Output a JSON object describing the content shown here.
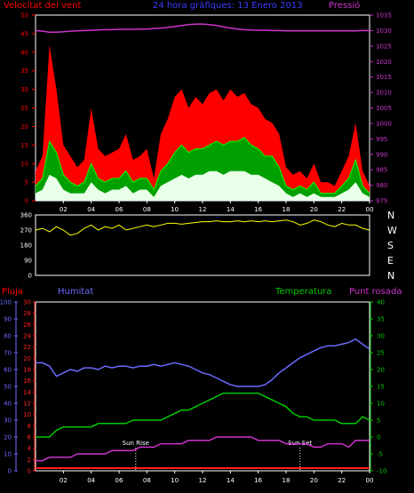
{
  "colors": {
    "background": "#000000",
    "wind_gust": "#ff0000",
    "wind_avg": "#00c800",
    "wind_min": "#e8ffe8",
    "pressure": "#cc33cc",
    "direction": "#ffff00",
    "humidity": "#6b6bff",
    "temperature": "#00c800",
    "dewpoint": "#cc33cc",
    "rain": "#ff2020",
    "axis_frame": "#ffffff",
    "sun_marker": "#ffffff"
  },
  "header": {
    "wind_label": "Velocitat del vent",
    "title": "24 hora gràfiques: 13 Enero 2013",
    "pressure_label": "Pressió"
  },
  "bottom_header": {
    "rain": "Pluja",
    "humidity": "Humitat",
    "temperature": "Temperatura",
    "dewpoint": "Punt rosada"
  },
  "annotations": {
    "sunrise": "Sun Rise",
    "sunset": "Sun Set"
  },
  "chart_data": [
    {
      "type": "area",
      "title": "24 hora gràfiques: 13 Enero 2013",
      "ylabel": "Velocitat del vent",
      "y2label": "Pressió",
      "ylim": [
        0,
        50
      ],
      "y2lim": [
        975,
        1035
      ],
      "left_ticks": [
        "0",
        "5",
        "10",
        "15",
        "20",
        "25",
        "30",
        "35",
        "40",
        "45",
        "50"
      ],
      "right_ticks": [
        "975",
        "980",
        "985",
        "990",
        "995",
        "1000",
        "1005",
        "1010",
        "1015",
        "1020",
        "1025",
        "1030",
        "1035"
      ],
      "x_ticks": [
        "02",
        "04",
        "06",
        "08",
        "10",
        "12",
        "14",
        "16",
        "18",
        "20",
        "22",
        "00"
      ],
      "x": [
        0,
        0.5,
        1,
        1.5,
        2,
        2.5,
        3,
        3.5,
        4,
        4.5,
        5,
        5.5,
        6,
        6.5,
        7,
        7.5,
        8,
        8.5,
        9,
        9.5,
        10,
        10.5,
        11,
        11.5,
        12,
        12.5,
        13,
        13.5,
        14,
        14.5,
        15,
        15.5,
        16,
        16.5,
        17,
        17.5,
        18,
        18.5,
        19,
        19.5,
        20,
        20.5,
        21,
        21.5,
        22,
        22.5,
        23,
        23.5,
        24
      ],
      "series": [
        {
          "name": "gust",
          "values": [
            8,
            12,
            42,
            30,
            15,
            12,
            9,
            11,
            25,
            14,
            12,
            13,
            14,
            18,
            11,
            12,
            14,
            6,
            18,
            22,
            28,
            30,
            25,
            28,
            26,
            29,
            30,
            27,
            30,
            28,
            29,
            26,
            25,
            22,
            21,
            18,
            9,
            7,
            8,
            6,
            10,
            5,
            5,
            4,
            8,
            12,
            21,
            8,
            4
          ]
        },
        {
          "name": "average",
          "values": [
            4,
            6,
            16,
            13,
            7,
            5,
            4,
            5,
            10,
            6,
            5,
            6,
            6,
            8,
            5,
            6,
            6,
            3,
            8,
            10,
            13,
            15,
            13,
            14,
            14,
            15,
            16,
            15,
            16,
            16,
            17,
            15,
            14,
            12,
            12,
            9,
            4,
            3,
            4,
            3,
            5,
            2,
            2,
            2,
            4,
            6,
            11,
            4,
            2
          ]
        },
        {
          "name": "minimum",
          "values": [
            2,
            3,
            7,
            6,
            3,
            2,
            2,
            2,
            5,
            3,
            2,
            3,
            3,
            4,
            2,
            3,
            3,
            1,
            4,
            5,
            6,
            7,
            6,
            7,
            7,
            8,
            8,
            7,
            8,
            8,
            8,
            7,
            7,
            6,
            5,
            4,
            2,
            1,
            2,
            1,
            2,
            1,
            1,
            1,
            2,
            3,
            5,
            2,
            1
          ]
        },
        {
          "name": "pressure",
          "values": [
            1030,
            1029.8,
            1029.5,
            1029.5,
            1029.6,
            1029.8,
            1029.9,
            1030,
            1030.1,
            1030.2,
            1030.3,
            1030.3,
            1030.4,
            1030.4,
            1030.4,
            1030.5,
            1030.5,
            1030.7,
            1030.8,
            1031,
            1031.3,
            1031.6,
            1031.9,
            1032.1,
            1032.1,
            1031.9,
            1031.6,
            1031.2,
            1030.8,
            1030.5,
            1030.3,
            1030.2,
            1030.1,
            1030.1,
            1030,
            1030,
            1029.9,
            1029.9,
            1029.9,
            1029.9,
            1029.9,
            1029.9,
            1029.9,
            1029.9,
            1029.9,
            1029.9,
            1029.9,
            1030,
            1030
          ]
        }
      ]
    },
    {
      "type": "line",
      "left_ticks": [
        "0",
        "90",
        "180",
        "270",
        "360"
      ],
      "right_labels": [
        "N",
        "W",
        "S",
        "E",
        "N"
      ],
      "ylim": [
        0,
        360
      ],
      "x_ticks": [
        "02",
        "04",
        "06",
        "08",
        "10",
        "12",
        "14",
        "16",
        "18",
        "20",
        "22",
        "00"
      ],
      "x": [
        0,
        0.5,
        1,
        1.5,
        2,
        2.5,
        3,
        3.5,
        4,
        4.5,
        5,
        5.5,
        6,
        6.5,
        7,
        7.5,
        8,
        8.5,
        9,
        9.5,
        10,
        10.5,
        11,
        11.5,
        12,
        12.5,
        13,
        13.5,
        14,
        14.5,
        15,
        15.5,
        16,
        16.5,
        17,
        17.5,
        18,
        18.5,
        19,
        19.5,
        20,
        20.5,
        21,
        21.5,
        22,
        22.5,
        23,
        23.5,
        24
      ],
      "series": [
        {
          "name": "direction",
          "values": [
            270,
            280,
            260,
            290,
            270,
            240,
            250,
            280,
            300,
            270,
            290,
            280,
            300,
            270,
            280,
            290,
            300,
            290,
            300,
            310,
            310,
            305,
            310,
            315,
            320,
            320,
            325,
            320,
            320,
            325,
            320,
            325,
            320,
            325,
            320,
            325,
            330,
            320,
            300,
            310,
            330,
            320,
            300,
            290,
            310,
            300,
            300,
            280,
            270
          ]
        }
      ]
    },
    {
      "type": "line",
      "left_ticks": [
        "0",
        "10",
        "20",
        "30",
        "40",
        "50",
        "60",
        "70",
        "80",
        "90",
        "100"
      ],
      "rain_ticks": [
        "0",
        "2",
        "4",
        "6",
        "8",
        "10",
        "12",
        "14",
        "16",
        "18",
        "20",
        "22",
        "24",
        "26",
        "28",
        "30"
      ],
      "right_ticks": [
        "-10",
        "-5",
        "0",
        "5",
        "10",
        "15",
        "20",
        "25",
        "30",
        "35",
        "40"
      ],
      "ylim": [
        0,
        100
      ],
      "y2lim": [
        -10,
        40
      ],
      "x_ticks": [
        "02",
        "04",
        "06",
        "08",
        "10",
        "12",
        "14",
        "16",
        "18",
        "20",
        "22",
        "00"
      ],
      "x": [
        0,
        0.5,
        1,
        1.5,
        2,
        2.5,
        3,
        3.5,
        4,
        4.5,
        5,
        5.5,
        6,
        6.5,
        7,
        7.5,
        8,
        8.5,
        9,
        9.5,
        10,
        10.5,
        11,
        11.5,
        12,
        12.5,
        13,
        13.5,
        14,
        14.5,
        15,
        15.5,
        16,
        16.5,
        17,
        17.5,
        18,
        18.5,
        19,
        19.5,
        20,
        20.5,
        21,
        21.5,
        22,
        22.5,
        23,
        23.5,
        24
      ],
      "series": [
        {
          "name": "humidity",
          "values": [
            64,
            64,
            62,
            56,
            58,
            60,
            59,
            61,
            61,
            60,
            62,
            61,
            62,
            62,
            61,
            62,
            62,
            63,
            62,
            63,
            64,
            63,
            62,
            60,
            58,
            57,
            55,
            53,
            51,
            50,
            50,
            50,
            50,
            51,
            54,
            58,
            61,
            64,
            67,
            69,
            71,
            73,
            74,
            74,
            75,
            76,
            78,
            75,
            72
          ]
        },
        {
          "name": "temperature",
          "values": [
            0,
            0,
            0,
            2,
            3,
            3,
            3,
            3,
            3,
            4,
            4,
            4,
            4,
            4,
            5,
            5,
            5,
            5,
            5,
            6,
            7,
            8,
            8,
            9,
            10,
            11,
            12,
            13,
            13,
            13,
            13,
            13,
            13,
            12,
            11,
            10,
            9,
            7,
            6,
            6,
            5,
            5,
            5,
            5,
            4,
            4,
            4,
            6,
            5
          ]
        },
        {
          "name": "dewpoint",
          "values": [
            -7,
            -7,
            -6,
            -6,
            -6,
            -6,
            -5,
            -5,
            -5,
            -5,
            -5,
            -4,
            -4,
            -4,
            -4,
            -3,
            -3,
            -3,
            -2,
            -2,
            -2,
            -2,
            -1,
            -1,
            -1,
            -1,
            0,
            0,
            0,
            0,
            0,
            0,
            -1,
            -1,
            -1,
            -1,
            -2,
            -2,
            -2,
            -2,
            -3,
            -3,
            -2,
            -2,
            -2,
            -3,
            -1,
            -1,
            -1
          ]
        },
        {
          "name": "rain",
          "values": [
            0,
            0,
            0,
            0,
            0,
            0,
            0,
            0,
            0,
            0,
            0,
            0,
            0,
            0,
            0,
            0,
            0,
            0,
            0,
            0,
            0,
            0,
            0,
            0,
            0,
            0,
            0,
            0,
            0,
            0,
            0,
            0,
            0,
            0,
            0,
            0,
            0,
            0,
            0,
            0,
            0,
            0,
            0,
            0,
            0,
            0,
            0,
            0,
            0
          ]
        }
      ],
      "sunrise_hour": 7.2,
      "sunset_hour": 19.0
    }
  ]
}
